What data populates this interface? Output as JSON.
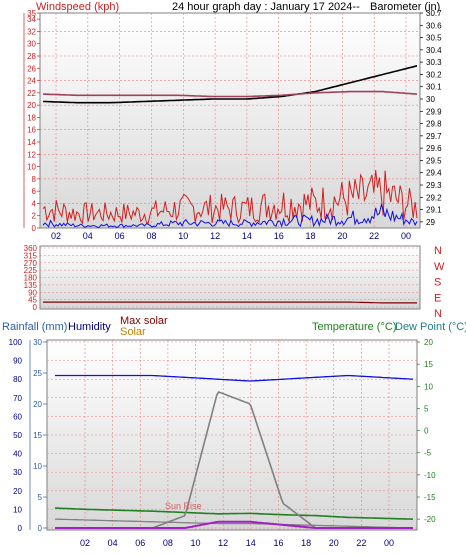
{
  "title": "24 hour graph day : January 17 2024--",
  "hours": [
    "02",
    "04",
    "06",
    "08",
    "10",
    "12",
    "14",
    "16",
    "18",
    "20",
    "22",
    "00"
  ],
  "colors": {
    "frame": "#808080",
    "grid": "#e88080",
    "red": "#d02020",
    "blue": "#1010e0",
    "darkblue": "#000080",
    "black": "#000000",
    "baro": "#a04060",
    "rain": "#3060a0",
    "green": "#208020",
    "gray": "#808080",
    "purple": "#a020c0",
    "orange": "#c08000",
    "maroon": "#800000"
  },
  "chart_data": [
    {
      "type": "line",
      "name": "wind-barometer",
      "labels": {
        "left": "Windspeed (kph)",
        "title": "24 hour graph day : January 17 2024--",
        "right": "Barometer (in)"
      },
      "x": [
        "02",
        "04",
        "06",
        "08",
        "10",
        "12",
        "14",
        "16",
        "18",
        "20",
        "22",
        "00"
      ],
      "left_axis": {
        "ticks": [
          "35",
          "34",
          "32",
          "30",
          "28",
          "26",
          "24",
          "22",
          "20",
          "18",
          "16",
          "14",
          "12",
          "10",
          "8",
          "6",
          "4",
          "2",
          "0"
        ],
        "ylim": [
          0,
          35
        ]
      },
      "right_axis": {
        "ticks": [
          "30.7",
          "30.6",
          "30.5",
          "30.4",
          "30.3",
          "30.2",
          "30.1",
          "30",
          "29.9",
          "29.8",
          "29.7",
          "29.6",
          "29.5",
          "29.4",
          "29.3",
          "29.2",
          "29.1",
          "29"
        ],
        "ylim": [
          28.95,
          30.7
        ]
      },
      "series": [
        {
          "name": "Barometer (in)",
          "color": "black",
          "values": [
            29.98,
            29.97,
            29.97,
            29.98,
            29.99,
            30.0,
            30.0,
            30.02,
            30.06,
            30.13,
            30.2,
            30.27
          ]
        },
        {
          "color": "baro",
          "values": [
            30.04,
            30.03,
            30.03,
            30.03,
            30.03,
            30.02,
            30.02,
            30.03,
            30.05,
            30.06,
            30.06,
            30.04
          ]
        },
        {
          "color": "red",
          "values": [
            4,
            3,
            3,
            3,
            4,
            4,
            4,
            5,
            5,
            6,
            7,
            4
          ]
        },
        {
          "color": "blue",
          "values": [
            1,
            0.5,
            0.5,
            0.5,
            1,
            1,
            1,
            1.5,
            1.5,
            2,
            3,
            1
          ]
        }
      ]
    },
    {
      "type": "line",
      "name": "wind-direction",
      "left_axis": {
        "ticks": [
          "360",
          "315",
          "270",
          "225",
          "180",
          "135",
          "90",
          "45",
          "0"
        ],
        "ylim": [
          0,
          360
        ]
      },
      "right_labels": [
        "N",
        "W",
        "S",
        "E",
        "N"
      ],
      "series": [
        {
          "color": "maroon",
          "values": [
            30,
            30,
            30,
            30,
            30,
            30,
            30,
            30,
            30,
            30,
            25,
            25
          ]
        }
      ]
    },
    {
      "type": "line",
      "name": "humidity-temperature",
      "labels": {
        "rainfall": "Rainfall (mm)",
        "humidity": "Humidity",
        "max_solar": "Max solar",
        "solar": "Solar",
        "temperature": "Temperature (°C)",
        "dew_point": "Dew Point (°C)",
        "sun_rise": "Sun Rise"
      },
      "x": [
        "02",
        "04",
        "06",
        "08",
        "10",
        "12",
        "14",
        "16",
        "18",
        "20",
        "22",
        "00"
      ],
      "humidity_axis": {
        "ticks": [
          "100",
          "90",
          "80",
          "70",
          "60",
          "50",
          "40",
          "30",
          "20",
          "10",
          "0"
        ],
        "ylim": [
          0,
          100
        ]
      },
      "rain_axis": {
        "ticks": [
          "30",
          "25",
          "20",
          "15",
          "10",
          "5",
          "0"
        ],
        "ylim": [
          0,
          30
        ]
      },
      "temp_axis": {
        "ticks": [
          "20",
          "15",
          "10",
          "5",
          "0",
          "-5",
          "-10",
          "-15",
          "-20"
        ],
        "ylim": [
          -22,
          20
        ]
      },
      "series": [
        {
          "name": "Humidity",
          "color": "blue",
          "values": [
            82,
            82,
            82,
            82,
            81,
            80,
            79,
            80,
            81,
            82,
            81,
            80
          ]
        },
        {
          "name": "Temperature (°C)",
          "color": "green",
          "values": [
            -17.5,
            -17.8,
            -18,
            -18.2,
            -18.5,
            -18.8,
            -18.7,
            -19,
            -19.2,
            -19.6,
            -19.8,
            -20
          ]
        },
        {
          "name": "Dew Point (°C)",
          "color": "gray",
          "values": [
            -20,
            -20.2,
            -20.4,
            -20.6,
            -20.8,
            -21,
            -21,
            -21.2,
            -21.4,
            -21.6,
            -21.8,
            -22
          ]
        },
        {
          "name": "Max solar",
          "color": "gray",
          "values": [
            0,
            0,
            0,
            0,
            2,
            22,
            20,
            4,
            0,
            0,
            0,
            0
          ]
        },
        {
          "name": "Solar",
          "color": "purple",
          "values": [
            0,
            0,
            0,
            0,
            0,
            1,
            1,
            0.5,
            0,
            0,
            0,
            0
          ]
        }
      ]
    }
  ]
}
